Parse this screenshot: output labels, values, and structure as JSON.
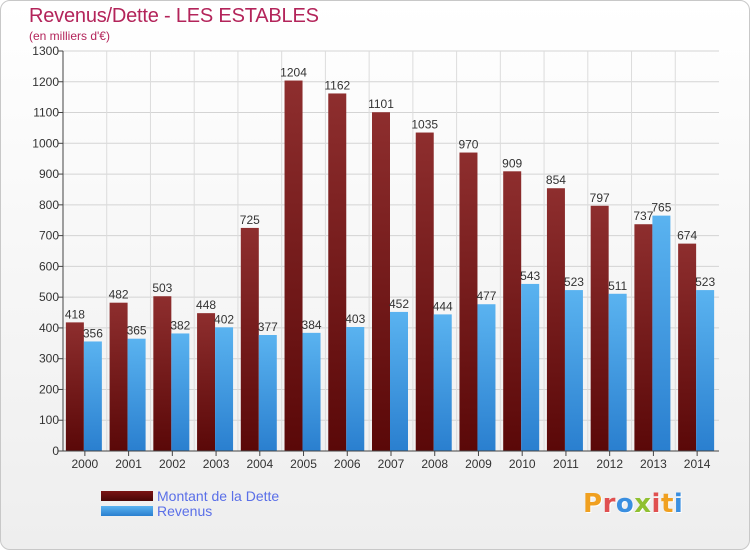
{
  "header": {
    "title": "Revenus/Dette - LES ESTABLES",
    "subtitle": "(en milliers d'€)"
  },
  "chart_data": {
    "type": "bar",
    "title": "Revenus/Dette - LES ESTABLES",
    "subtitle": "(en milliers d'€)",
    "categories": [
      "2000",
      "2001",
      "2002",
      "2003",
      "2004",
      "2005",
      "2006",
      "2007",
      "2008",
      "2009",
      "2010",
      "2011",
      "2012",
      "2013",
      "2014"
    ],
    "series": [
      {
        "name": "Montant de la Dette",
        "color": "#8b1a1a",
        "values": [
          418,
          482,
          503,
          448,
          725,
          1204,
          1162,
          1101,
          1035,
          970,
          909,
          854,
          797,
          737,
          674
        ]
      },
      {
        "name": "Revenus",
        "color": "#3d9be3",
        "values": [
          356,
          365,
          382,
          402,
          377,
          384,
          403,
          452,
          444,
          477,
          543,
          523,
          511,
          765,
          523
        ]
      }
    ],
    "ylim": [
      0,
      1300
    ],
    "yticks": [
      "0",
      "100",
      "200",
      "300",
      "400",
      "500",
      "600",
      "700",
      "800",
      "900",
      "1000",
      "1100",
      "1200",
      "1300"
    ],
    "grid": true,
    "legend_position": "bottom-left"
  },
  "legend": {
    "items": [
      {
        "label": "Montant de la Dette",
        "color": "#8b1a1a"
      },
      {
        "label": "Revenus",
        "color": "#3d9be3"
      }
    ]
  },
  "logo": {
    "text": "Proxiti",
    "letters": [
      {
        "ch": "P",
        "color": "#f0a020"
      },
      {
        "ch": "r",
        "color": "#e05050"
      },
      {
        "ch": "o",
        "color": "#3a8fe0"
      },
      {
        "ch": "x",
        "color": "#90c030"
      },
      {
        "ch": "i",
        "color": "#e05050"
      },
      {
        "ch": "t",
        "color": "#f0a020"
      },
      {
        "ch": "i",
        "color": "#3a8fe0"
      }
    ]
  }
}
